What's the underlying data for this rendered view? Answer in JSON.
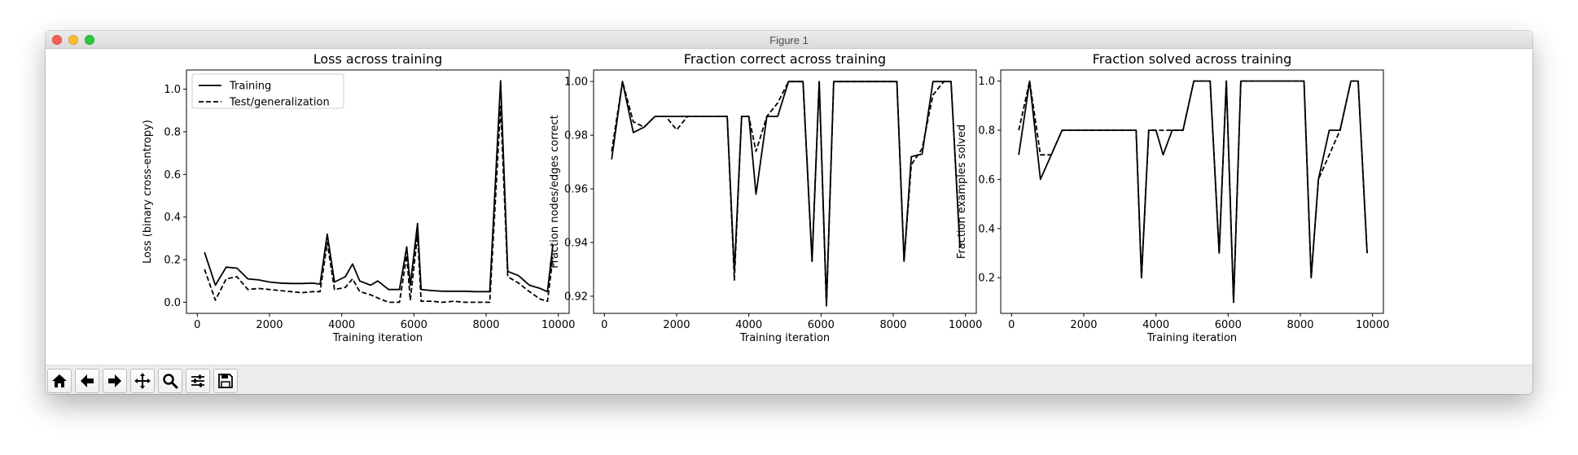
{
  "window": {
    "title": "Figure 1",
    "controls": [
      "close",
      "minimize",
      "zoom"
    ]
  },
  "toolbar": {
    "buttons": [
      {
        "name": "home",
        "icon": "home-icon"
      },
      {
        "name": "back",
        "icon": "arrow-left-icon"
      },
      {
        "name": "forward",
        "icon": "arrow-right-icon"
      },
      {
        "name": "pan",
        "icon": "move-icon"
      },
      {
        "name": "zoom",
        "icon": "magnifier-icon"
      },
      {
        "name": "configure-subplots",
        "icon": "sliders-icon"
      },
      {
        "name": "save",
        "icon": "floppy-disk-icon"
      }
    ]
  },
  "chart_data": [
    {
      "type": "line",
      "title": "Loss across training",
      "xlabel": "Training iteration",
      "ylabel": "Loss (binary cross-entropy)",
      "xlim": [
        -300,
        10300
      ],
      "ylim": [
        -0.052,
        1.09
      ],
      "xticks": [
        0,
        2000,
        4000,
        6000,
        8000,
        10000
      ],
      "xtick_labels": [
        "0",
        "2000",
        "4000",
        "6000",
        "8000",
        "10000"
      ],
      "yticks": [
        0.0,
        0.2,
        0.4,
        0.6,
        0.8,
        1.0
      ],
      "ytick_labels": [
        "0.0",
        "0.2",
        "0.4",
        "0.6",
        "0.8",
        "1.0"
      ],
      "legend": {
        "position": "upper-left"
      },
      "series": [
        {
          "name": "Training",
          "style": "solid",
          "x": [
            200,
            500,
            800,
            1100,
            1400,
            1700,
            2000,
            2300,
            2600,
            2900,
            3200,
            3400,
            3600,
            3800,
            4100,
            4300,
            4500,
            4800,
            5000,
            5300,
            5600,
            5800,
            5900,
            6100,
            6200,
            6500,
            6800,
            7100,
            7400,
            7700,
            8100,
            8400,
            8600,
            8900,
            9200,
            9500,
            9700,
            9850
          ],
          "y": [
            0.235,
            0.08,
            0.165,
            0.16,
            0.11,
            0.105,
            0.095,
            0.09,
            0.088,
            0.088,
            0.09,
            0.085,
            0.32,
            0.095,
            0.12,
            0.18,
            0.1,
            0.08,
            0.1,
            0.06,
            0.06,
            0.26,
            0.08,
            0.37,
            0.06,
            0.055,
            0.052,
            0.052,
            0.052,
            0.05,
            0.05,
            1.04,
            0.145,
            0.125,
            0.08,
            0.065,
            0.05,
            0.27
          ]
        },
        {
          "name": "Test/generalization",
          "style": "dashed",
          "x": [
            200,
            500,
            800,
            1100,
            1400,
            1700,
            2000,
            2300,
            2600,
            2900,
            3200,
            3400,
            3600,
            3800,
            4100,
            4300,
            4500,
            4800,
            5000,
            5300,
            5600,
            5800,
            5900,
            6100,
            6200,
            6500,
            6800,
            7100,
            7400,
            7700,
            8100,
            8400,
            8600,
            8900,
            9200,
            9500,
            9700,
            9850
          ],
          "y": [
            0.155,
            0.01,
            0.11,
            0.12,
            0.06,
            0.065,
            0.06,
            0.055,
            0.05,
            0.045,
            0.05,
            0.05,
            0.28,
            0.06,
            0.07,
            0.11,
            0.05,
            0.035,
            0.02,
            0.0,
            0.0,
            0.22,
            0.01,
            0.32,
            0.005,
            0.005,
            0.0,
            0.005,
            0.0,
            0.0,
            0.0,
            0.92,
            0.12,
            0.09,
            0.05,
            0.015,
            0.005,
            0.21
          ]
        }
      ]
    },
    {
      "type": "line",
      "title": "Fraction correct across training",
      "xlabel": "Training iteration",
      "ylabel": "Fraction nodes/edges correct",
      "xlim": [
        -300,
        10300
      ],
      "ylim": [
        0.9136,
        1.0043
      ],
      "xticks": [
        0,
        2000,
        4000,
        6000,
        8000,
        10000
      ],
      "xtick_labels": [
        "0",
        "2000",
        "4000",
        "6000",
        "8000",
        "10000"
      ],
      "yticks": [
        0.92,
        0.94,
        0.96,
        0.98,
        1.0
      ],
      "ytick_labels": [
        "0.92",
        "0.94",
        "0.96",
        "0.98",
        "1.00"
      ],
      "series": [
        {
          "name": "Training",
          "style": "solid",
          "x": [
            200,
            500,
            800,
            1100,
            1400,
            1700,
            2000,
            2300,
            2600,
            2900,
            3200,
            3400,
            3600,
            3800,
            4000,
            4200,
            4500,
            4800,
            5100,
            5300,
            5500,
            5750,
            5950,
            6150,
            6350,
            6700,
            7100,
            7500,
            8100,
            8300,
            8500,
            8800,
            9100,
            9400,
            9600,
            9850
          ],
          "y": [
            0.971,
            1.0,
            0.981,
            0.983,
            0.987,
            0.987,
            0.987,
            0.987,
            0.987,
            0.987,
            0.987,
            0.987,
            0.929,
            0.987,
            0.987,
            0.958,
            0.987,
            0.987,
            1.0,
            1.0,
            1.0,
            0.933,
            1.0,
            0.917,
            1.0,
            1.0,
            1.0,
            1.0,
            1.0,
            0.933,
            0.972,
            0.973,
            1.0,
            1.0,
            1.0,
            0.938
          ]
        },
        {
          "name": "Test/generalization",
          "style": "dashed",
          "x": [
            200,
            500,
            800,
            1100,
            1400,
            1700,
            2000,
            2300,
            2600,
            2900,
            3200,
            3400,
            3600,
            3800,
            4000,
            4200,
            4500,
            4800,
            5100,
            5300,
            5500,
            5750,
            5950,
            6150,
            6350,
            6700,
            7100,
            7500,
            8100,
            8300,
            8500,
            8800,
            9100,
            9400,
            9600,
            9850
          ],
          "y": [
            0.974,
            1.0,
            0.985,
            0.983,
            0.987,
            0.987,
            0.982,
            0.987,
            0.987,
            0.987,
            0.987,
            0.987,
            0.926,
            0.987,
            0.987,
            0.974,
            0.987,
            0.992,
            1.0,
            1.0,
            1.0,
            0.933,
            1.0,
            0.916,
            1.0,
            1.0,
            1.0,
            1.0,
            1.0,
            0.933,
            0.969,
            0.975,
            0.995,
            1.0,
            1.0,
            0.938
          ]
        }
      ]
    },
    {
      "type": "line",
      "title": "Fraction solved across training",
      "xlabel": "Training iteration",
      "ylabel": "Fraction examples solved",
      "xlim": [
        -300,
        10300
      ],
      "ylim": [
        0.055,
        1.045
      ],
      "xticks": [
        0,
        2000,
        4000,
        6000,
        8000,
        10000
      ],
      "xtick_labels": [
        "0",
        "2000",
        "4000",
        "6000",
        "8000",
        "10000"
      ],
      "yticks": [
        0.2,
        0.4,
        0.6,
        0.8,
        1.0
      ],
      "ytick_labels": [
        "0.2",
        "0.4",
        "0.6",
        "0.8",
        "1.0"
      ],
      "series": [
        {
          "name": "Training",
          "style": "solid",
          "x": [
            200,
            500,
            800,
            1100,
            1400,
            1700,
            2000,
            2300,
            2600,
            2900,
            3200,
            3450,
            3600,
            3800,
            4000,
            4200,
            4450,
            4750,
            5050,
            5300,
            5500,
            5750,
            5950,
            6150,
            6350,
            6700,
            7100,
            7500,
            8100,
            8300,
            8500,
            8800,
            9100,
            9400,
            9600,
            9850
          ],
          "y": [
            0.7,
            1.0,
            0.6,
            0.7,
            0.8,
            0.8,
            0.8,
            0.8,
            0.8,
            0.8,
            0.8,
            0.8,
            0.2,
            0.8,
            0.8,
            0.7,
            0.8,
            0.8,
            1.0,
            1.0,
            1.0,
            0.3,
            1.0,
            0.1,
            1.0,
            1.0,
            1.0,
            1.0,
            1.0,
            0.2,
            0.6,
            0.8,
            0.8,
            1.0,
            1.0,
            0.3
          ]
        },
        {
          "name": "Test/generalization",
          "style": "dashed",
          "x": [
            200,
            500,
            800,
            1100,
            1400,
            1700,
            2000,
            2300,
            2600,
            2900,
            3200,
            3450,
            3600,
            3800,
            4000,
            4200,
            4450,
            4750,
            5050,
            5300,
            5500,
            5750,
            5950,
            6150,
            6350,
            6700,
            7100,
            7500,
            8100,
            8300,
            8500,
            8800,
            9100,
            9400,
            9600,
            9850
          ],
          "y": [
            0.8,
            1.0,
            0.7,
            0.7,
            0.8,
            0.8,
            0.8,
            0.8,
            0.8,
            0.8,
            0.8,
            0.8,
            0.2,
            0.8,
            0.8,
            0.8,
            0.8,
            0.8,
            1.0,
            1.0,
            1.0,
            0.3,
            1.0,
            0.1,
            1.0,
            1.0,
            1.0,
            1.0,
            1.0,
            0.2,
            0.6,
            0.7,
            0.8,
            1.0,
            1.0,
            0.3
          ]
        }
      ]
    }
  ]
}
